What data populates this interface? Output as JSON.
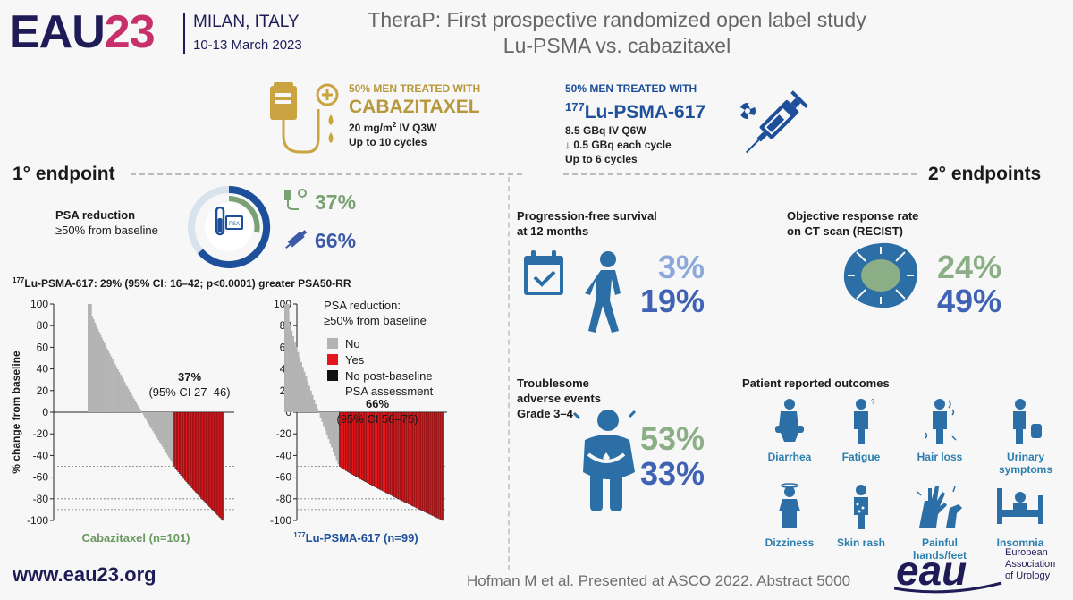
{
  "header": {
    "logo_eau": "EAU",
    "logo_year": "23",
    "city": "MILAN, ITALY",
    "dates": "10-13 March 2023",
    "title_line1": "TheraP: First prospective randomized open label study",
    "title_line2": "Lu-PSMA vs. cabazitaxel"
  },
  "arms": {
    "cabazitaxel": {
      "small": "50% MEN TREATED WITH",
      "name": "CABAZITAXEL",
      "dose_pre": "20 mg/m",
      "dose_sup": "2",
      "dose_post": " IV Q3W",
      "cycles": "Up to 10 cycles"
    },
    "lu": {
      "small": "50% MEN TREATED WITH",
      "sup": "177",
      "name": "Lu-PSMA-617",
      "dose": "8.5 GBq IV Q6W",
      "decrement": "↓ 0.5 GBq each cycle",
      "cycles": "Up to 6 cycles"
    }
  },
  "primary": {
    "heading": "1° endpoint",
    "psa_label_bold": "PSA reduction",
    "psa_label_sub": "≥50% from baseline",
    "pct_cab": "37%",
    "pct_lu": "66%",
    "donut_text": "PSA",
    "stat_sup": "177",
    "stat_text": "Lu-PSMA-617: 29% (95% CI: 16–42; p<0.0001) greater PSA50-RR"
  },
  "chart_data": {
    "type": "bar",
    "ylabel": "% change from baseline",
    "ylim": [
      -100,
      100
    ],
    "yticks": [
      "100",
      "80",
      "60",
      "40",
      "20",
      "0",
      "-20",
      "-40",
      "-60",
      "-80",
      "-100"
    ],
    "reference_lines": [
      -50,
      -80,
      -90
    ],
    "legend": {
      "title_line1": "PSA reduction:",
      "title_line2": "≥50% from baseline",
      "items": [
        {
          "label": "No",
          "color": "#b3b3b3"
        },
        {
          "label": "Yes",
          "color": "#e3161b"
        },
        {
          "label": "No post-baseline",
          "label2": "PSA assessment",
          "color": "#111111"
        }
      ]
    },
    "panels": [
      {
        "name": "Cabazitaxel (n=101)",
        "n": 101,
        "responders_pct": 37,
        "annotation_pct": "37%",
        "annotation_ci": "(95% CI 27–46)",
        "label_color": "#6a9960"
      },
      {
        "name_sup": "177",
        "name": "Lu-PSMA-617 (n=99)",
        "n": 99,
        "responders_pct": 66,
        "annotation_pct": "66%",
        "annotation_ci": "(95% CI 56–75)",
        "label_color": "#1d4f9b"
      }
    ]
  },
  "secondary": {
    "heading": "2° endpoints",
    "pfs": {
      "label1": "Progression-free survival",
      "label2": "at 12 months",
      "cab": "3%",
      "lu": "19%"
    },
    "orr": {
      "label1": "Objective response rate",
      "label2": "on CT scan (RECIST)",
      "cab": "24%",
      "lu": "49%"
    },
    "ae": {
      "label1": "Troublesome",
      "label2": "adverse events",
      "label3": "Grade 3–4",
      "cab": "53%",
      "lu": "33%"
    },
    "pro": {
      "heading": "Patient reported outcomes",
      "items": [
        {
          "label": "Diarrhea"
        },
        {
          "label": "Fatigue"
        },
        {
          "label": "Hair loss"
        },
        {
          "label": "Urinary",
          "label2": "symptoms"
        },
        {
          "label": "Dizziness"
        },
        {
          "label": "Skin rash"
        },
        {
          "label": "Painful",
          "label2": "hands/feet"
        },
        {
          "label": "Insomnia"
        }
      ]
    }
  },
  "footer": {
    "url": "www.eau23.org",
    "reference": "Hofman M et al. Presented at ASCO 2022. Abstract 5000",
    "eau_mark": "eau",
    "assoc1": "European",
    "assoc2": "Association",
    "assoc3": "of Urology"
  },
  "colors": {
    "cab_gold": "#c9a441",
    "lu_blue": "#1d4f9b",
    "navy": "#1f1b57",
    "magenta": "#c8306c",
    "icon_blue": "#2b6fa6"
  }
}
